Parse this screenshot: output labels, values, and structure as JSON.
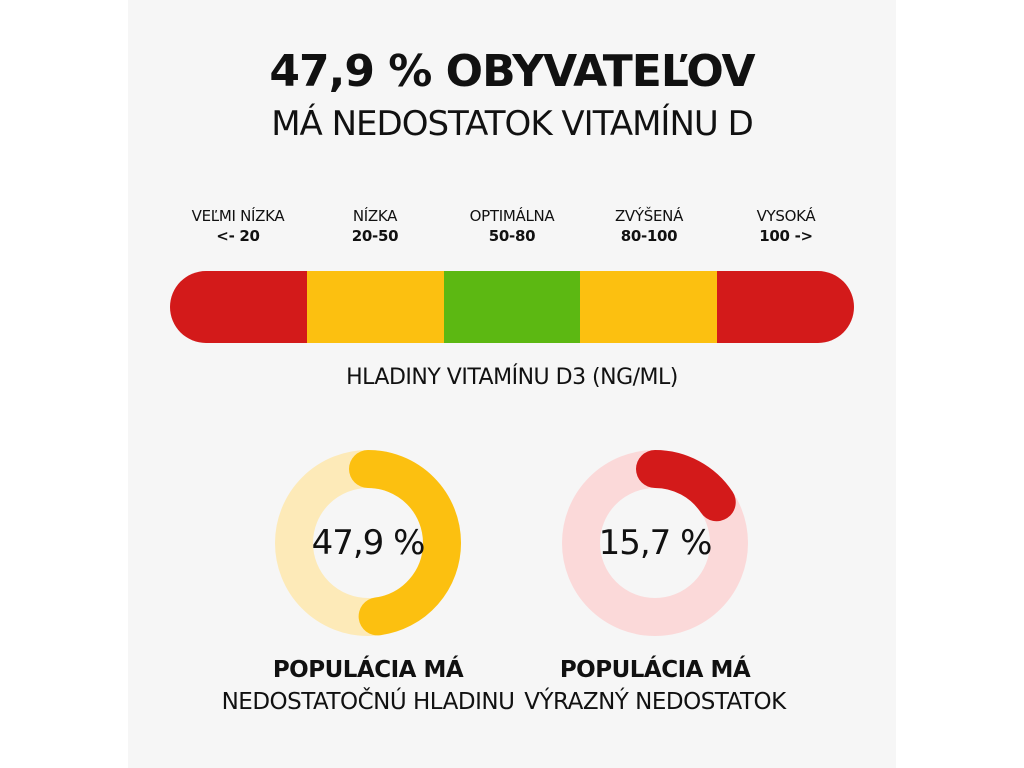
{
  "title": "47,9 % OBYVATEĽOV",
  "subtitle": "MÁ NEDOSTATOK VITAMÍNU D",
  "colors": {
    "background": "#f6f6f6",
    "red": "#d31a1a",
    "yellow": "#fcc010",
    "green": "#5cb812",
    "yellow_track": "#fdeab8",
    "pink_track": "#fbd9d9"
  },
  "chart_data": [
    {
      "type": "bar",
      "orientation": "horizontal-segmented",
      "xlabel": "HLADINY VITAMÍNU D3 (NG/ML)",
      "categories": [
        {
          "name": "VEĽMI NÍZKA",
          "range": "<- 20",
          "color": "#d31a1a"
        },
        {
          "name": "NÍZKA",
          "range": "20-50",
          "color": "#fcc010"
        },
        {
          "name": "OPTIMÁLNA",
          "range": "50-80",
          "color": "#5cb812"
        },
        {
          "name": "ZVÝŠENÁ",
          "range": "80-100",
          "color": "#fcc010"
        },
        {
          "name": "VYSOKÁ",
          "range": "100 ->",
          "color": "#d31a1a"
        }
      ]
    },
    {
      "type": "pie",
      "variant": "donut",
      "value": 47.9,
      "label": "47,9 %",
      "color": "#fcc010",
      "track_color": "#fdeab8",
      "caption_lead": "POPULÁCIA MÁ",
      "caption_tail": "NEDOSTATOČNÚ HLADINU"
    },
    {
      "type": "pie",
      "variant": "donut",
      "value": 15.7,
      "label": "15,7 %",
      "color": "#d31a1a",
      "track_color": "#fbd9d9",
      "caption_lead": "POPULÁCIA MÁ",
      "caption_tail": "VÝRAZNÝ NEDOSTATOK"
    }
  ]
}
